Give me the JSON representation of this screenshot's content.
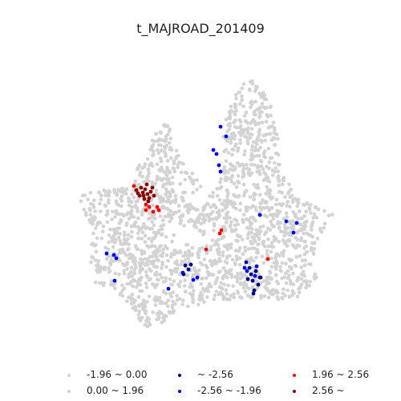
{
  "chart_data": {
    "type": "scatter",
    "title": "t_MAJROAD_201409",
    "legend_placement": "bottom",
    "classes": [
      {
        "label": "-1.96 ~ 0.00",
        "color": "#d3d3d3"
      },
      {
        "label": "0.00 ~ 1.96",
        "color": "#d3d3d3"
      },
      {
        "label": "~ -2.56",
        "color": "#00008b"
      },
      {
        "label": "-2.56 ~ -1.96",
        "color": "#0000ff"
      },
      {
        "label": "1.96 ~ 2.56",
        "color": "#ff0000"
      },
      {
        "label": "2.56 ~",
        "color": "#8b0000"
      }
    ],
    "clusters": [
      {
        "class": "2.56 ~",
        "points": [
          [
            170,
            237
          ],
          [
            174,
            244
          ],
          [
            178,
            240
          ],
          [
            181,
            236
          ],
          [
            184,
            242
          ],
          [
            188,
            239
          ],
          [
            186,
            247
          ],
          [
            180,
            248
          ],
          [
            176,
            234
          ],
          [
            183,
            230
          ],
          [
            190,
            234
          ],
          [
            192,
            244
          ],
          [
            172,
            241
          ],
          [
            185,
            251
          ],
          [
            179,
            244
          ]
        ]
      },
      {
        "class": "1.96 ~ 2.56",
        "points": [
          [
            167,
            232
          ],
          [
            182,
            255
          ],
          [
            186,
            258
          ],
          [
            196,
            258
          ],
          [
            198,
            262
          ],
          [
            191,
            264
          ],
          [
            182,
            262
          ],
          [
            276,
            287
          ],
          [
            274,
            291
          ],
          [
            257,
            311
          ],
          [
            334,
            323
          ]
        ]
      },
      {
        "class": "-2.56 ~ -1.96",
        "points": [
          [
            275,
            158
          ],
          [
            282,
            170
          ],
          [
            266,
            187
          ],
          [
            270,
            192
          ],
          [
            273,
            206
          ],
          [
            275,
            214
          ],
          [
            324,
            268
          ],
          [
            357,
            276
          ],
          [
            370,
            278
          ],
          [
            366,
            290
          ],
          [
            133,
            316
          ],
          [
            142,
            318
          ],
          [
            145,
            322
          ],
          [
            143,
            350
          ],
          [
            210,
            360
          ],
          [
            241,
            349
          ],
          [
            246,
            346
          ],
          [
            228,
            340
          ],
          [
            305,
            334
          ],
          [
            308,
            338
          ],
          [
            318,
            344
          ],
          [
            325,
            346
          ],
          [
            320,
            332
          ]
        ]
      },
      {
        "class": "~ -2.56",
        "points": [
          [
            231,
            331
          ],
          [
            235,
            336
          ],
          [
            238,
            330
          ],
          [
            229,
            342
          ],
          [
            307,
            327
          ],
          [
            311,
            334
          ],
          [
            313,
            342
          ],
          [
            315,
            350
          ],
          [
            319,
            338
          ],
          [
            322,
            355
          ],
          [
            317,
            362
          ],
          [
            324,
            346
          ],
          [
            309,
            348
          ],
          [
            316,
            366
          ]
        ]
      }
    ]
  }
}
